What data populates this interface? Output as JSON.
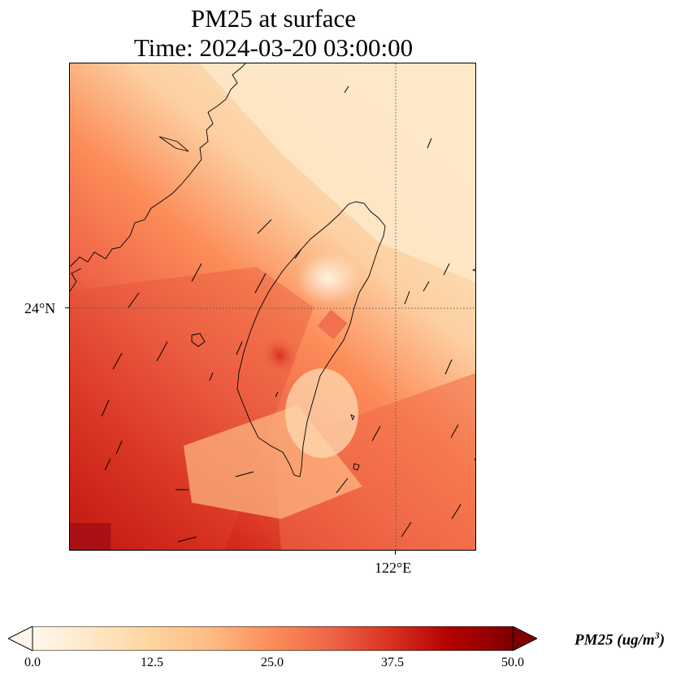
{
  "figure": {
    "title_line1": "PM25 at surface",
    "title_line2": "Time: 2024-03-20 03:00:00"
  },
  "map": {
    "region": "Taiwan",
    "projection_note": "gridded surface field with coastlines and wind vectors",
    "lat_gridline_label": "24°N",
    "lon_gridline_label": "122°E",
    "gridline_style": "dotted",
    "colormap": "OrRd",
    "background_colors": {
      "low": "#fff7ec",
      "mid": "#fc8d59",
      "high": "#7f0000"
    },
    "field_description": "Plume of high PM2.5 extending along the Taiwan Strait from the southwest; low values over the northeast sea and central mountain range."
  },
  "colorbar": {
    "label_prefix": "PM25 (ug/m",
    "label_sup": "3",
    "label_suffix": ")",
    "min": 0.0,
    "max": 50.0,
    "extend": "both",
    "ticks": [
      "0.0",
      "12.5",
      "25.0",
      "37.5",
      "50.0"
    ]
  }
}
